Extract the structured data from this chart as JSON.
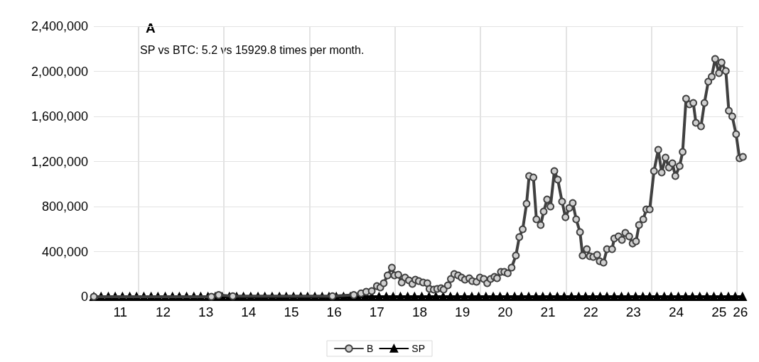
{
  "chart_data": {
    "type": "line",
    "title": "A",
    "annotations": [
      "SP vs BTC: 5.2 vs 15929.8 times per month."
    ],
    "xlim": [
      10.38,
      25.57
    ],
    "xticks": [
      11,
      12,
      13,
      14,
      15,
      16,
      17,
      18,
      19,
      20,
      21,
      22,
      23,
      24,
      25,
      {
        "value": 25.5,
        "label": "26"
      },
      {
        "value": 11.42,
        "label": null
      },
      {
        "value": 13.42,
        "label": null
      },
      {
        "value": 15.42,
        "label": null
      },
      {
        "value": 17.42,
        "label": null
      },
      {
        "value": 19.42,
        "label": null
      },
      {
        "value": 21.42,
        "label": null
      },
      {
        "value": 23.42,
        "label": null
      },
      {
        "value": 25.42,
        "label": null
      }
    ],
    "ylim": [
      0,
      2400000
    ],
    "yticks": [
      0,
      {
        "value": 400000,
        "label": "400,000"
      },
      {
        "value": 800000,
        "label": "800,000"
      },
      {
        "value": 1200000,
        "label": "1,200,000"
      },
      {
        "value": 1600000,
        "label": "1,600,000"
      },
      {
        "value": 2000000,
        "label": "2,000,000"
      },
      {
        "value": 2400000,
        "label": "2,400,000"
      }
    ],
    "grid": true,
    "legend": "bottom",
    "line_style": "solid",
    "series": [
      {
        "name": "B",
        "color": "#404040",
        "marker": "circle",
        "x": [
          10.38,
          13.13,
          13.3,
          13.63,
          15.96,
          16.46,
          16.63,
          16.75,
          16.88,
          17.0,
          17.08,
          17.16,
          17.25,
          17.35,
          17.41,
          17.5,
          17.58,
          17.66,
          17.75,
          17.83,
          17.9,
          17.98,
          18.08,
          18.18,
          18.23,
          18.33,
          18.41,
          18.5,
          18.56,
          18.66,
          18.73,
          18.81,
          18.9,
          18.98,
          19.06,
          19.16,
          19.23,
          19.33,
          19.41,
          19.5,
          19.58,
          19.66,
          19.75,
          19.81,
          19.9,
          19.98,
          20.06,
          20.15,
          20.25,
          20.33,
          20.41,
          20.5,
          20.56,
          20.66,
          20.73,
          20.83,
          20.9,
          20.98,
          21.06,
          21.15,
          21.23,
          21.33,
          21.41,
          21.5,
          21.58,
          21.66,
          21.75,
          21.81,
          21.91,
          21.98,
          22.06,
          22.15,
          22.21,
          22.3,
          22.38,
          22.5,
          22.55,
          22.65,
          22.73,
          22.81,
          22.9,
          22.98,
          23.06,
          23.13,
          23.23,
          23.3,
          23.38,
          23.48,
          23.58,
          23.66,
          23.75,
          23.83,
          23.91,
          23.98,
          24.08,
          24.15,
          24.23,
          24.31,
          24.4,
          24.46,
          24.58,
          24.66,
          24.75,
          24.83,
          24.91,
          25.0,
          25.06,
          25.16,
          25.23,
          25.31,
          25.4,
          25.48,
          25.56
        ],
        "values": [
          0,
          0,
          15000,
          5000,
          5000,
          15000,
          30000,
          44000,
          50000,
          94000,
          82000,
          120000,
          189000,
          258000,
          189000,
          195000,
          126000,
          170000,
          145000,
          113000,
          151000,
          139000,
          126000,
          120000,
          69000,
          63000,
          69000,
          76000,
          63000,
          101000,
          157000,
          202000,
          189000,
          170000,
          151000,
          164000,
          139000,
          132000,
          170000,
          157000,
          120000,
          157000,
          176000,
          164000,
          220000,
          220000,
          208000,
          258000,
          365000,
          529000,
          598000,
          825000,
          1071000,
          1058000,
          687000,
          636000,
          756000,
          863000,
          800000,
          1115000,
          1039000,
          844000,
          705000,
          787000,
          831000,
          687000,
          573000,
          365000,
          422000,
          359000,
          353000,
          372000,
          315000,
          302000,
          422000,
          422000,
          516000,
          535000,
          504000,
          567000,
          535000,
          472000,
          491000,
          636000,
          687000,
          775000,
          775000,
          1115000,
          1304000,
          1102000,
          1235000,
          1146000,
          1184000,
          1071000,
          1159000,
          1285000,
          1757000,
          1707000,
          1720000,
          1543000,
          1512000,
          1720000,
          1909000,
          1953000,
          2110000,
          1984000,
          2079000,
          2003000,
          1650000,
          1600000,
          1442000,
          1228000,
          1241000
        ]
      },
      {
        "name": "SP",
        "color": "#000000",
        "marker": "triangle",
        "x": [
          10.38,
          10.55,
          10.72,
          10.88,
          11.05,
          11.22,
          11.38,
          11.55,
          11.72,
          11.88,
          12.05,
          12.22,
          12.38,
          12.55,
          12.72,
          12.88,
          13.05,
          13.22,
          13.38,
          13.55,
          13.72,
          13.88,
          14.05,
          14.22,
          14.38,
          14.55,
          14.72,
          14.88,
          15.05,
          15.22,
          15.38,
          15.55,
          15.72,
          15.88,
          16.05,
          16.22,
          16.38,
          16.55,
          16.72,
          16.88,
          17.05,
          17.22,
          17.38,
          17.55,
          17.72,
          17.88,
          18.05,
          18.22,
          18.38,
          18.55,
          18.72,
          18.88,
          19.05,
          19.22,
          19.38,
          19.55,
          19.72,
          19.88,
          20.05,
          20.22,
          20.38,
          20.55,
          20.72,
          20.88,
          21.05,
          21.22,
          21.38,
          21.55,
          21.72,
          21.88,
          22.05,
          22.22,
          22.38,
          22.55,
          22.72,
          22.88,
          23.05,
          23.22,
          23.38,
          23.55,
          23.72,
          23.88,
          24.05,
          24.22,
          24.38,
          24.55,
          24.72,
          24.88,
          25.05,
          25.22,
          25.38,
          25.55
        ],
        "values": [
          0,
          0,
          0,
          0,
          0,
          0,
          0,
          0,
          0,
          0,
          0,
          0,
          0,
          0,
          0,
          0,
          0,
          0,
          0,
          0,
          0,
          0,
          0,
          0,
          0,
          0,
          0,
          0,
          0,
          0,
          0,
          0,
          0,
          0,
          0,
          0,
          0,
          0,
          0,
          0,
          0,
          0,
          0,
          0,
          0,
          0,
          0,
          0,
          0,
          0,
          0,
          0,
          0,
          0,
          0,
          0,
          0,
          0,
          0,
          0,
          0,
          0,
          0,
          0,
          0,
          0,
          0,
          0,
          0,
          0,
          0,
          0,
          0,
          0,
          0,
          0,
          0,
          0,
          0,
          0,
          0,
          0,
          0,
          0,
          0,
          0,
          0,
          0,
          0,
          0,
          0,
          0
        ]
      }
    ]
  }
}
